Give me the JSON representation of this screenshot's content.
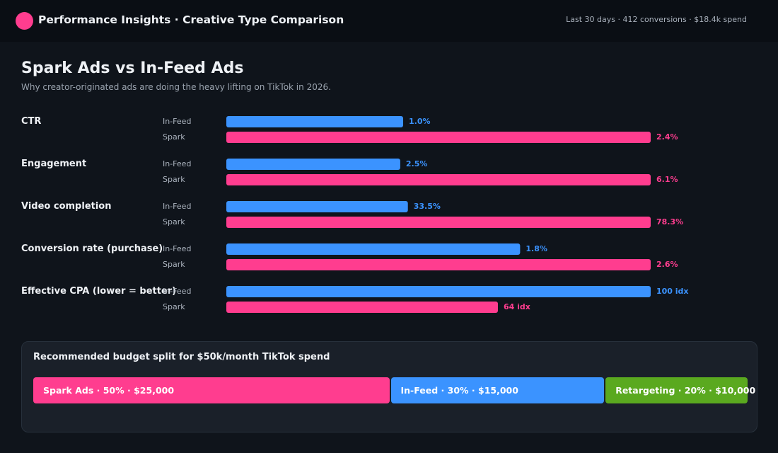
{
  "header": {
    "title": "Performance Insights · Creative Type Comparison",
    "summary": "Last 30 days · 412 conversions · $18.4k spend"
  },
  "page": {
    "title": "Spark Ads vs In-Feed Ads",
    "subtitle": "Why creator-originated ads are doing the heavy lifting on TikTok in 2026."
  },
  "colors": {
    "in_feed": "#3b93ff",
    "spark": "#ff3d8f",
    "retargeting": "#5aa91f",
    "logo": "#ff3d8f"
  },
  "chart_data": {
    "type": "bar",
    "orientation": "horizontal",
    "grid": false,
    "series": [
      {
        "name": "In-Feed"
      },
      {
        "name": "Spark"
      }
    ],
    "metrics": [
      {
        "label": "CTR",
        "in_feed": {
          "value": 1.0,
          "display": "1.0%"
        },
        "spark": {
          "value": 2.4,
          "display": "2.4%"
        }
      },
      {
        "label": "Engagement",
        "in_feed": {
          "value": 2.5,
          "display": "2.5%"
        },
        "spark": {
          "value": 6.1,
          "display": "6.1%"
        }
      },
      {
        "label": "Video completion",
        "in_feed": {
          "value": 33.5,
          "display": "33.5%"
        },
        "spark": {
          "value": 78.3,
          "display": "78.3%"
        }
      },
      {
        "label": "Conversion rate (purchase)",
        "in_feed": {
          "value": 1.8,
          "display": "1.8%"
        },
        "spark": {
          "value": 2.6,
          "display": "2.6%"
        }
      },
      {
        "label": "Effective CPA (lower = better)",
        "in_feed": {
          "value": 100,
          "display": "100 idx"
        },
        "spark": {
          "value": 64,
          "display": "64 idx"
        }
      }
    ]
  },
  "budget": {
    "title": "Recommended budget split for $50k/month TikTok spend",
    "segments": [
      {
        "label": "Spark Ads · 50% · $25,000",
        "share": 50,
        "color": "#ff3d8f"
      },
      {
        "label": "In-Feed · 30% · $15,000",
        "share": 30,
        "color": "#3b93ff"
      },
      {
        "label": "Retargeting · 20% · $10,000",
        "share": 20,
        "color": "#5aa91f"
      }
    ]
  }
}
